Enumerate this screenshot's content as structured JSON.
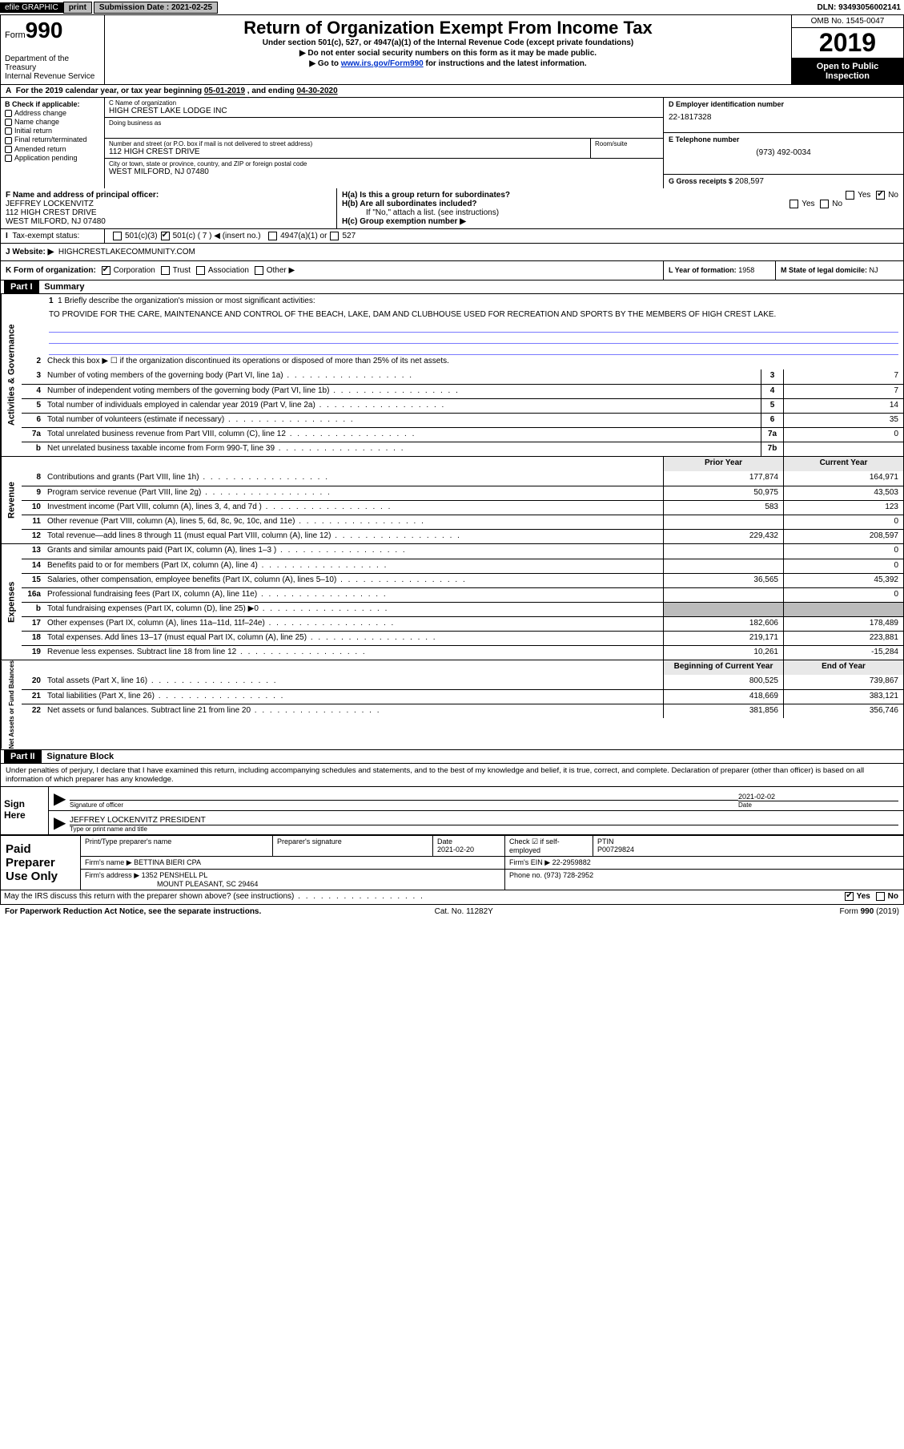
{
  "topbar": {
    "efile": "efile GRAPHIC",
    "print": "print",
    "sub_label": "Submission Date :",
    "sub_date": "2021-02-25",
    "dln": "DLN: 93493056002141"
  },
  "header": {
    "form_word": "Form",
    "form_num": "990",
    "dept": "Department of the Treasury\nInternal Revenue Service",
    "title": "Return of Organization Exempt From Income Tax",
    "sub1": "Under section 501(c), 527, or 4947(a)(1) of the Internal Revenue Code (except private foundations)",
    "sub2": "▶ Do not enter social security numbers on this form as it may be made public.",
    "sub3_pre": "▶ Go to ",
    "sub3_link": "www.irs.gov/Form990",
    "sub3_post": " for instructions and the latest information.",
    "omb": "OMB No. 1545-0047",
    "year": "2019",
    "inspect": "Open to Public Inspection"
  },
  "period": {
    "text_a": "For the 2019 calendar year, or tax year beginning ",
    "begin": "05-01-2019",
    "text_b": " , and ending ",
    "end": "04-30-2020"
  },
  "boxB": {
    "title": "B Check if applicable:",
    "items": [
      "Address change",
      "Name change",
      "Initial return",
      "Final return/terminated",
      "Amended return",
      "Application pending"
    ]
  },
  "org": {
    "name_label": "C Name of organization",
    "name": "HIGH CREST LAKE LODGE INC",
    "dba_label": "Doing business as",
    "addr_label": "Number and street (or P.O. box if mail is not delivered to street address)",
    "addr": "112 HIGH CREST DRIVE",
    "room_label": "Room/suite",
    "city_label": "City or town, state or province, country, and ZIP or foreign postal code",
    "city": "WEST MILFORD, NJ  07480"
  },
  "right": {
    "ein_label": "D Employer identification number",
    "ein": "22-1817328",
    "phone_label": "E Telephone number",
    "phone": "(973) 492-0034",
    "gross_label": "G Gross receipts $",
    "gross": "208,597"
  },
  "officer": {
    "label": "F Name and address of principal officer:",
    "name": "JEFFREY LOCKENVITZ",
    "addr1": "112 HIGH CREST DRIVE",
    "addr2": "WEST MILFORD, NJ  07480"
  },
  "h": {
    "a": "H(a)  Is this a group return for subordinates?",
    "b": "H(b)  Are all subordinates included?",
    "b_note": "If \"No,\" attach a list. (see instructions)",
    "c": "H(c)  Group exemption number ▶",
    "yes": "Yes",
    "no": "No"
  },
  "tax_status": {
    "label": "Tax-exempt status:",
    "o1": "501(c)(3)",
    "o2": "501(c) ( 7 ) ◀ (insert no.)",
    "o3": "4947(a)(1) or",
    "o4": "527"
  },
  "website": {
    "label": "J   Website: ▶",
    "value": "HIGHCRESTLAKECOMMUNITY.COM"
  },
  "k": {
    "label": "K Form of organization:",
    "corp": "Corporation",
    "trust": "Trust",
    "assoc": "Association",
    "other": "Other ▶"
  },
  "l": {
    "label": "L Year of formation:",
    "value": "1958"
  },
  "m": {
    "label": "M State of legal domicile:",
    "value": "NJ"
  },
  "part1": {
    "hdr": "Part I",
    "title": "Summary",
    "q1": "1  Briefly describe the organization's mission or most significant activities:",
    "mission": "TO PROVIDE FOR THE CARE, MAINTENANCE AND CONTROL OF THE BEACH, LAKE, DAM AND CLUBHOUSE USED FOR RECREATION AND SPORTS BY THE MEMBERS OF HIGH CREST LAKE.",
    "q2": "Check this box ▶ ☐  if the organization discontinued its operations or disposed of more than 25% of its net assets.",
    "side_gov": "Activities & Governance",
    "side_rev": "Revenue",
    "side_exp": "Expenses",
    "side_net": "Net Assets or Fund Balances",
    "prior": "Prior Year",
    "current": "Current Year",
    "begin": "Beginning of Current Year",
    "endyr": "End of Year"
  },
  "gov_rows": [
    {
      "n": "3",
      "d": "Number of voting members of the governing body (Part VI, line 1a)",
      "box": "3",
      "v": "7"
    },
    {
      "n": "4",
      "d": "Number of independent voting members of the governing body (Part VI, line 1b)",
      "box": "4",
      "v": "7"
    },
    {
      "n": "5",
      "d": "Total number of individuals employed in calendar year 2019 (Part V, line 2a)",
      "box": "5",
      "v": "14"
    },
    {
      "n": "6",
      "d": "Total number of volunteers (estimate if necessary)",
      "box": "6",
      "v": "35"
    },
    {
      "n": "7a",
      "d": "Total unrelated business revenue from Part VIII, column (C), line 12",
      "box": "7a",
      "v": "0"
    },
    {
      "n": "b",
      "d": "Net unrelated business taxable income from Form 990-T, line 39",
      "box": "7b",
      "v": ""
    }
  ],
  "rev_rows": [
    {
      "n": "8",
      "d": "Contributions and grants (Part VIII, line 1h)",
      "p": "177,874",
      "c": "164,971"
    },
    {
      "n": "9",
      "d": "Program service revenue (Part VIII, line 2g)",
      "p": "50,975",
      "c": "43,503"
    },
    {
      "n": "10",
      "d": "Investment income (Part VIII, column (A), lines 3, 4, and 7d )",
      "p": "583",
      "c": "123"
    },
    {
      "n": "11",
      "d": "Other revenue (Part VIII, column (A), lines 5, 6d, 8c, 9c, 10c, and 11e)",
      "p": "",
      "c": "0"
    },
    {
      "n": "12",
      "d": "Total revenue—add lines 8 through 11 (must equal Part VIII, column (A), line 12)",
      "p": "229,432",
      "c": "208,597"
    }
  ],
  "exp_rows": [
    {
      "n": "13",
      "d": "Grants and similar amounts paid (Part IX, column (A), lines 1–3 )",
      "p": "",
      "c": "0"
    },
    {
      "n": "14",
      "d": "Benefits paid to or for members (Part IX, column (A), line 4)",
      "p": "",
      "c": "0"
    },
    {
      "n": "15",
      "d": "Salaries, other compensation, employee benefits (Part IX, column (A), lines 5–10)",
      "p": "36,565",
      "c": "45,392"
    },
    {
      "n": "16a",
      "d": "Professional fundraising fees (Part IX, column (A), line 11e)",
      "p": "",
      "c": "0"
    },
    {
      "n": "b",
      "d": "Total fundraising expenses (Part IX, column (D), line 25) ▶0",
      "p": "shade",
      "c": "shade"
    },
    {
      "n": "17",
      "d": "Other expenses (Part IX, column (A), lines 11a–11d, 11f–24e)",
      "p": "182,606",
      "c": "178,489"
    },
    {
      "n": "18",
      "d": "Total expenses. Add lines 13–17 (must equal Part IX, column (A), line 25)",
      "p": "219,171",
      "c": "223,881"
    },
    {
      "n": "19",
      "d": "Revenue less expenses. Subtract line 18 from line 12",
      "p": "10,261",
      "c": "-15,284"
    }
  ],
  "net_rows": [
    {
      "n": "20",
      "d": "Total assets (Part X, line 16)",
      "p": "800,525",
      "c": "739,867"
    },
    {
      "n": "21",
      "d": "Total liabilities (Part X, line 26)",
      "p": "418,669",
      "c": "383,121"
    },
    {
      "n": "22",
      "d": "Net assets or fund balances. Subtract line 21 from line 20",
      "p": "381,856",
      "c": "356,746"
    }
  ],
  "part2": {
    "hdr": "Part II",
    "title": "Signature Block",
    "decl": "Under penalties of perjury, I declare that I have examined this return, including accompanying schedules and statements, and to the best of my knowledge and belief, it is true, correct, and complete. Declaration of preparer (other than officer) is based on all information of which preparer has any knowledge.",
    "sign_here": "Sign Here",
    "sig_officer": "Signature of officer",
    "date": "Date",
    "sig_date": "2021-02-02",
    "name_title": "JEFFREY LOCKENVITZ  PRESIDENT",
    "type_label": "Type or print name and title",
    "paid": "Paid Preparer Use Only",
    "pt_name_label": "Print/Type preparer's name",
    "pt_sig_label": "Preparer's signature",
    "pt_date_label": "Date",
    "pt_date": "2021-02-20",
    "pt_check": "Check ☑ if self-employed",
    "ptin_label": "PTIN",
    "ptin": "P00729824",
    "firm_name_label": "Firm's name    ▶",
    "firm_name": "BETTINA BIERI CPA",
    "firm_ein_label": "Firm's EIN ▶",
    "firm_ein": "22-2959882",
    "firm_addr_label": "Firm's address ▶",
    "firm_addr1": "1352 PENSHELL PL",
    "firm_addr2": "MOUNT PLEASANT, SC  29464",
    "firm_phone_label": "Phone no.",
    "firm_phone": "(973) 728-2952",
    "discuss": "May the IRS discuss this return with the preparer shown above? (see instructions)"
  },
  "footer": {
    "left": "For Paperwork Reduction Act Notice, see the separate instructions.",
    "mid": "Cat. No. 11282Y",
    "right": "Form 990 (2019)"
  }
}
